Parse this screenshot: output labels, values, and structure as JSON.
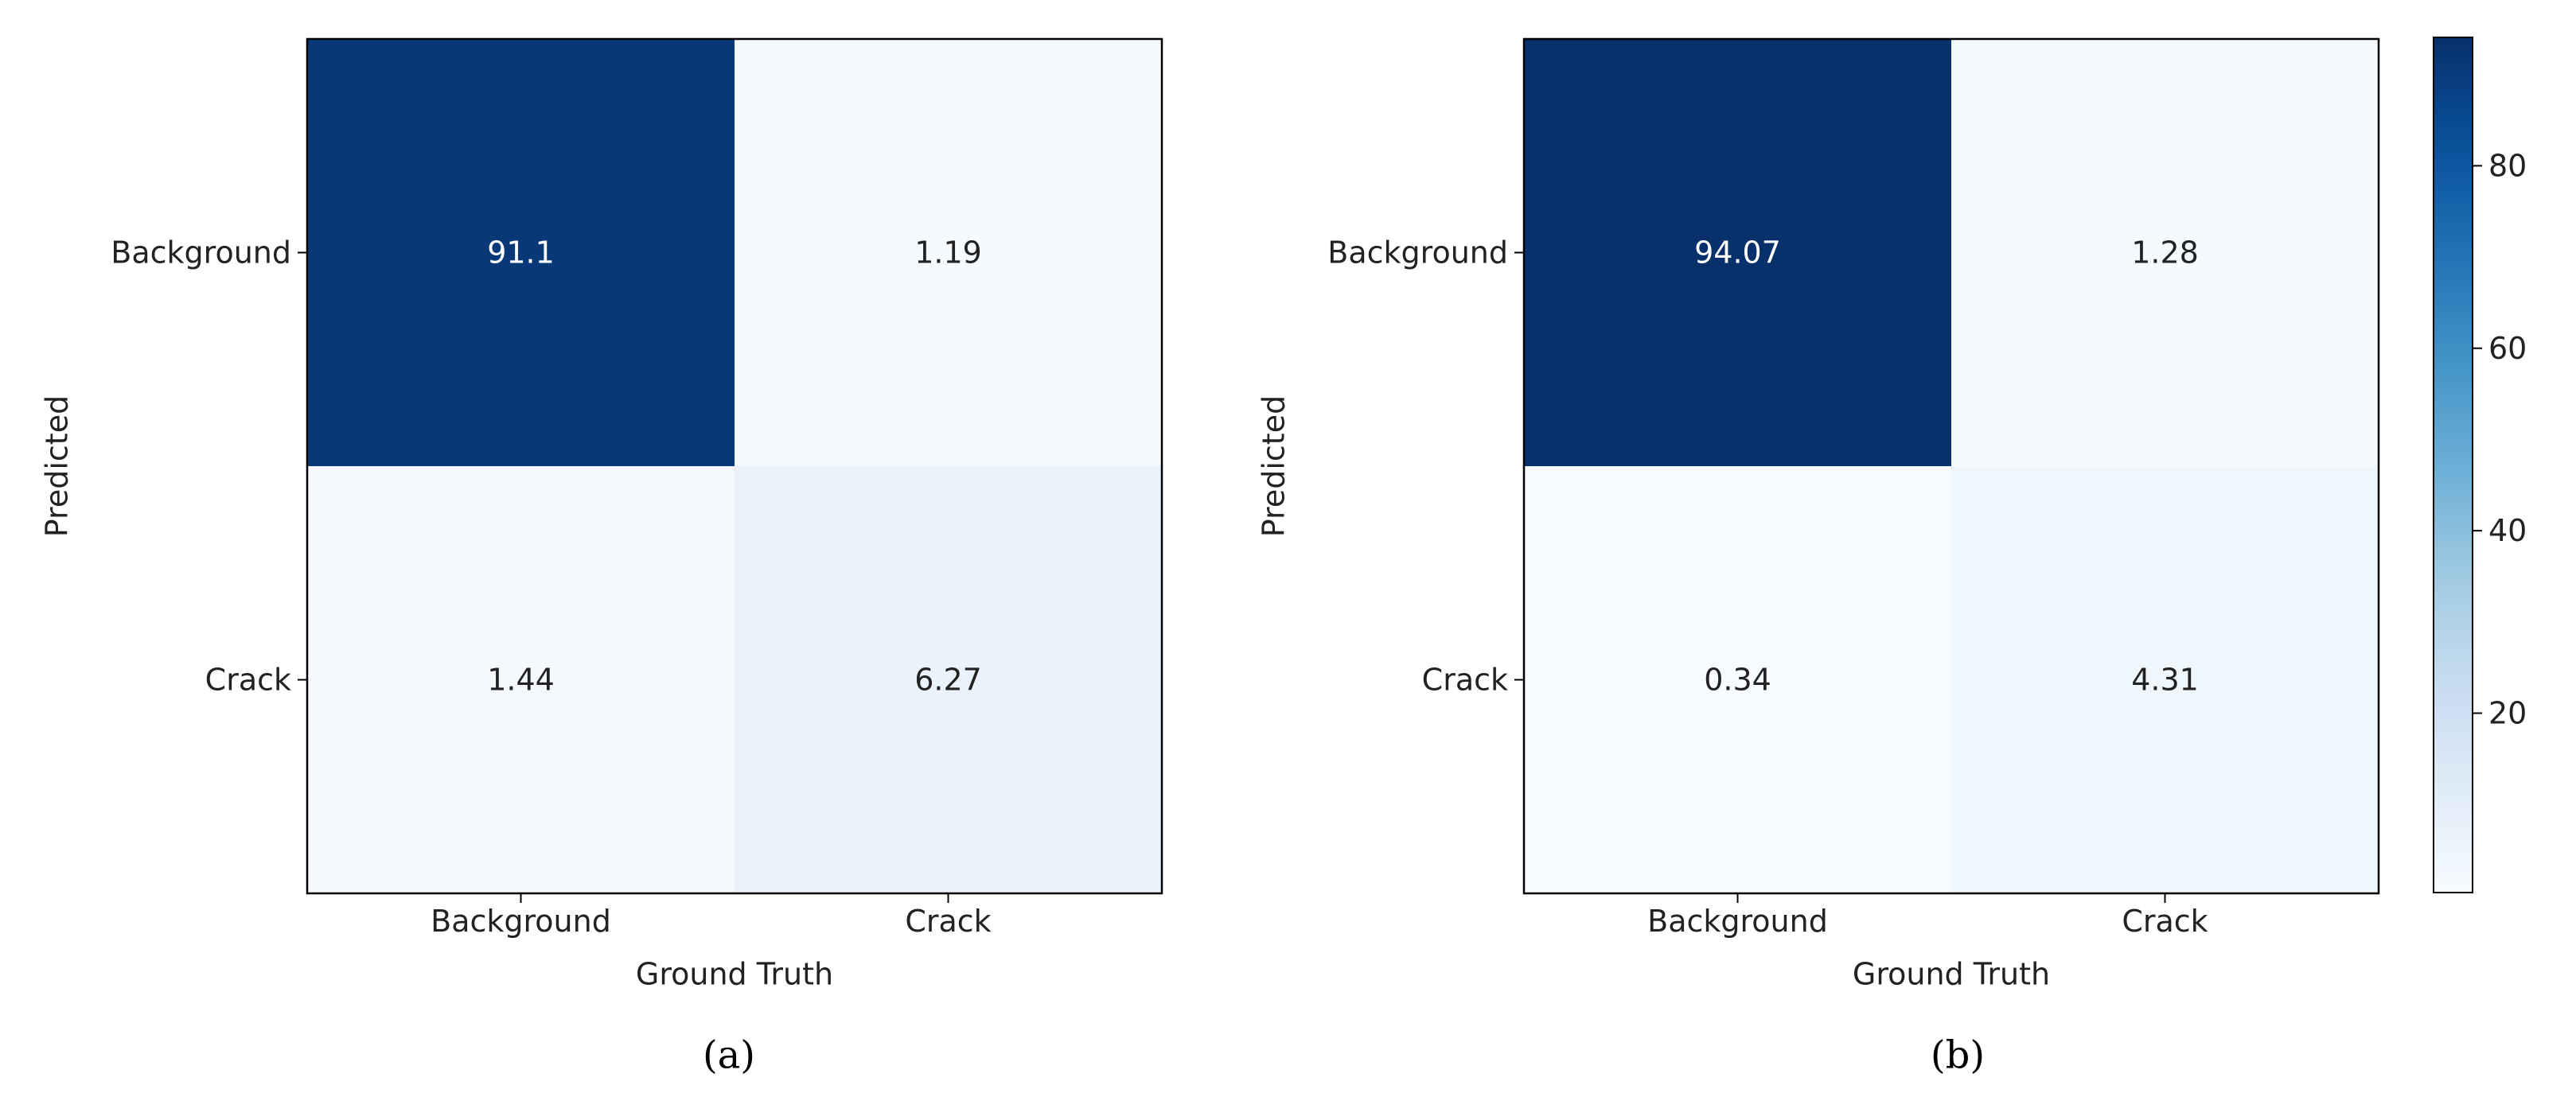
{
  "colorbar": {
    "ticks": [
      20,
      40,
      60,
      80
    ],
    "vmin": 0.34,
    "vmax": 94.07,
    "cmap": "Blues",
    "colors": [
      "#f7fbff",
      "#deebf7",
      "#c6dbef",
      "#9ecae1",
      "#6baed6",
      "#4292c6",
      "#2171b5",
      "#08519c",
      "#08306b"
    ]
  },
  "chart_data": [
    {
      "type": "heatmap",
      "panel_label": "(a)",
      "xlabel": "Ground Truth",
      "ylabel": "Predicted",
      "x_categories": [
        "Background",
        "Crack"
      ],
      "y_categories": [
        "Background",
        "Crack"
      ],
      "values": [
        [
          91.1,
          1.19
        ],
        [
          1.44,
          6.27
        ]
      ],
      "value_labels": [
        [
          "91.1",
          "1.19"
        ],
        [
          "1.44",
          "6.27"
        ]
      ]
    },
    {
      "type": "heatmap",
      "panel_label": "(b)",
      "xlabel": "Ground Truth",
      "ylabel": "Predicted",
      "x_categories": [
        "Background",
        "Crack"
      ],
      "y_categories": [
        "Background",
        "Crack"
      ],
      "values": [
        [
          94.07,
          1.28
        ],
        [
          0.34,
          4.31
        ]
      ],
      "value_labels": [
        [
          "94.07",
          "1.28"
        ],
        [
          "0.34",
          "4.31"
        ]
      ]
    }
  ]
}
